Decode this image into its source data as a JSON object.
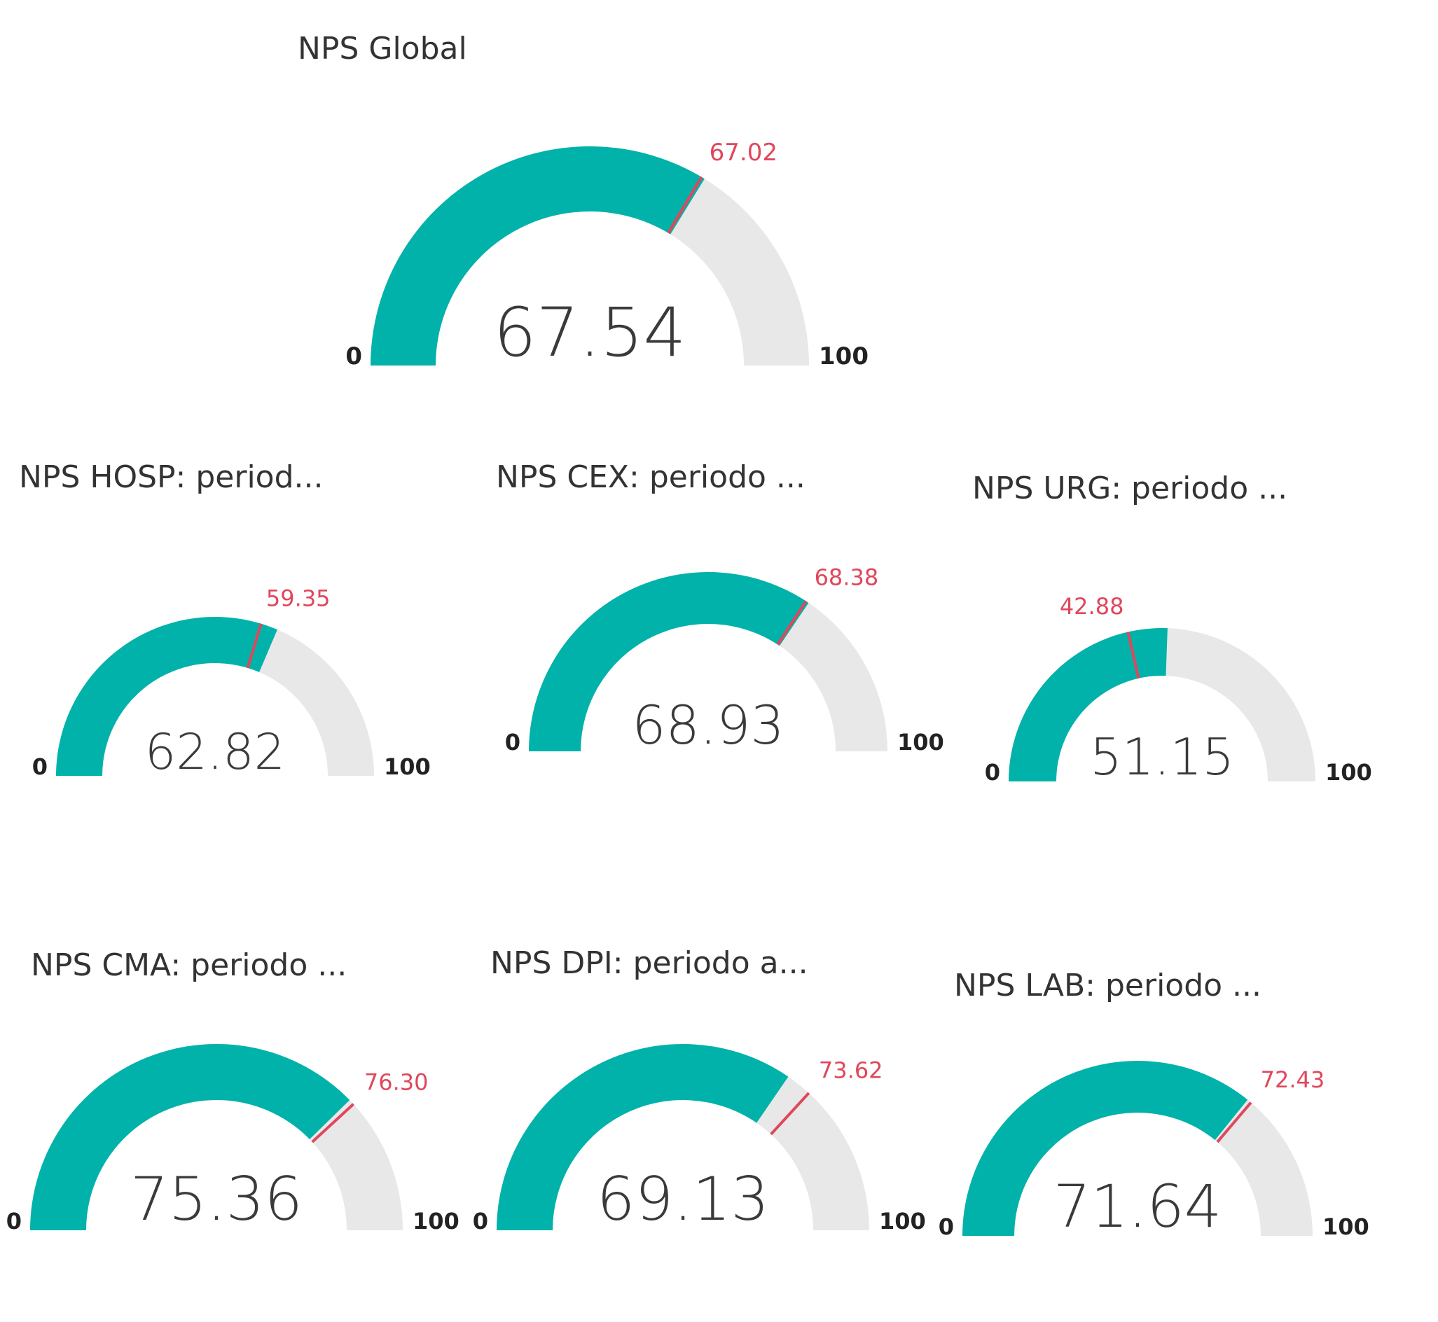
{
  "colors": {
    "fill": "#00b2a9",
    "track": "#e8e8e8",
    "target": "#e0475b",
    "text": "#333333"
  },
  "chart_data": [
    {
      "type": "gauge",
      "title": "NPS Global",
      "value": 67.54,
      "value_label": "67.54",
      "target": 67.02,
      "target_label": "67.02",
      "min": 0,
      "max": 100,
      "min_label": "0",
      "max_label": "100"
    },
    {
      "type": "gauge",
      "title": "NPS HOSP: period...",
      "value": 62.82,
      "value_label": "62.82",
      "target": 59.35,
      "target_label": "59.35",
      "min": 0,
      "max": 100,
      "min_label": "0",
      "max_label": "100"
    },
    {
      "type": "gauge",
      "title": "NPS CEX: periodo ...",
      "value": 68.93,
      "value_label": "68.93",
      "target": 68.38,
      "target_label": "68.38",
      "min": 0,
      "max": 100,
      "min_label": "0",
      "max_label": "100"
    },
    {
      "type": "gauge",
      "title": "NPS URG: periodo ...",
      "value": 51.15,
      "value_label": "51.15",
      "target": 42.88,
      "target_label": "42.88",
      "min": 0,
      "max": 100,
      "min_label": "0",
      "max_label": "100"
    },
    {
      "type": "gauge",
      "title": "NPS CMA: periodo ...",
      "value": 75.36,
      "value_label": "75.36",
      "target": 76.3,
      "target_label": "76.30",
      "min": 0,
      "max": 100,
      "min_label": "0",
      "max_label": "100"
    },
    {
      "type": "gauge",
      "title": "NPS DPI: periodo a...",
      "value": 69.13,
      "value_label": "69.13",
      "target": 73.62,
      "target_label": "73.62",
      "min": 0,
      "max": 100,
      "min_label": "0",
      "max_label": "100"
    },
    {
      "type": "gauge",
      "title": "NPS LAB: periodo ...",
      "value": 71.64,
      "value_label": "71.64",
      "target": 72.43,
      "target_label": "72.43",
      "min": 0,
      "max": 100,
      "min_label": "0",
      "max_label": "100"
    }
  ]
}
